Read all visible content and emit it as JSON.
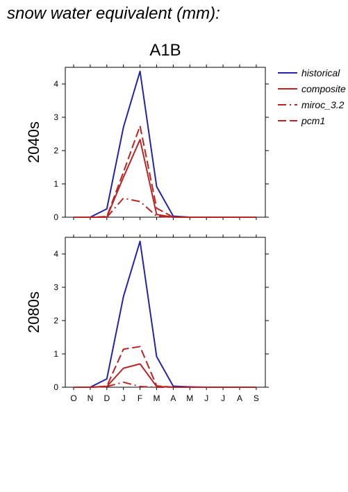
{
  "page_title": "snow water equivalent (mm):",
  "chart_data": {
    "type": "line",
    "title": "A1B",
    "categories": [
      "O",
      "N",
      "D",
      "J",
      "F",
      "M",
      "A",
      "M",
      "J",
      "J",
      "A",
      "S"
    ],
    "ylim": [
      0,
      4.5
    ],
    "yticks": [
      0,
      1,
      2,
      3,
      4
    ],
    "grid": false,
    "legend_placement": "top-right, outside",
    "legend": [
      {
        "name": "historical",
        "color": "#2222aa",
        "dash": "solid"
      },
      {
        "name": "composite",
        "color": "#bb2222",
        "dash": "solid"
      },
      {
        "name": "miroc_3.2",
        "color": "#bb2222",
        "dash": "dashdot"
      },
      {
        "name": "pcm1",
        "color": "#bb2222",
        "dash": "dashed"
      }
    ],
    "panels": [
      {
        "label": "2040s",
        "series": [
          {
            "name": "historical",
            "values": [
              0,
              0,
              0.25,
              2.7,
              4.38,
              0.92,
              0.03,
              0,
              0,
              0,
              0,
              0
            ]
          },
          {
            "name": "composite",
            "values": [
              0,
              0,
              0,
              1.2,
              2.33,
              0.08,
              0,
              0,
              0,
              0,
              0,
              0
            ]
          },
          {
            "name": "miroc_3.2",
            "values": [
              0,
              0,
              0,
              0.57,
              0.47,
              0.03,
              0,
              0,
              0,
              0,
              0,
              0
            ]
          },
          {
            "name": "pcm1",
            "values": [
              0,
              0,
              0.02,
              1.35,
              2.74,
              0.27,
              0,
              0,
              0,
              0,
              0,
              0
            ]
          }
        ]
      },
      {
        "label": "2080s",
        "series": [
          {
            "name": "historical",
            "values": [
              0,
              0,
              0.25,
              2.72,
              4.38,
              0.92,
              0.03,
              0.01,
              0,
              0,
              0,
              0
            ]
          },
          {
            "name": "composite",
            "values": [
              0,
              0,
              0.02,
              0.57,
              0.7,
              0.02,
              0,
              0,
              0,
              0,
              0,
              0
            ]
          },
          {
            "name": "miroc_3.2",
            "values": [
              0,
              0,
              0.02,
              0.15,
              0.02,
              0,
              0,
              0,
              0,
              0,
              0,
              0
            ]
          },
          {
            "name": "pcm1",
            "values": [
              0,
              0,
              0.03,
              1.14,
              1.22,
              0.04,
              0,
              0,
              0,
              0,
              0,
              0
            ]
          }
        ]
      }
    ]
  }
}
